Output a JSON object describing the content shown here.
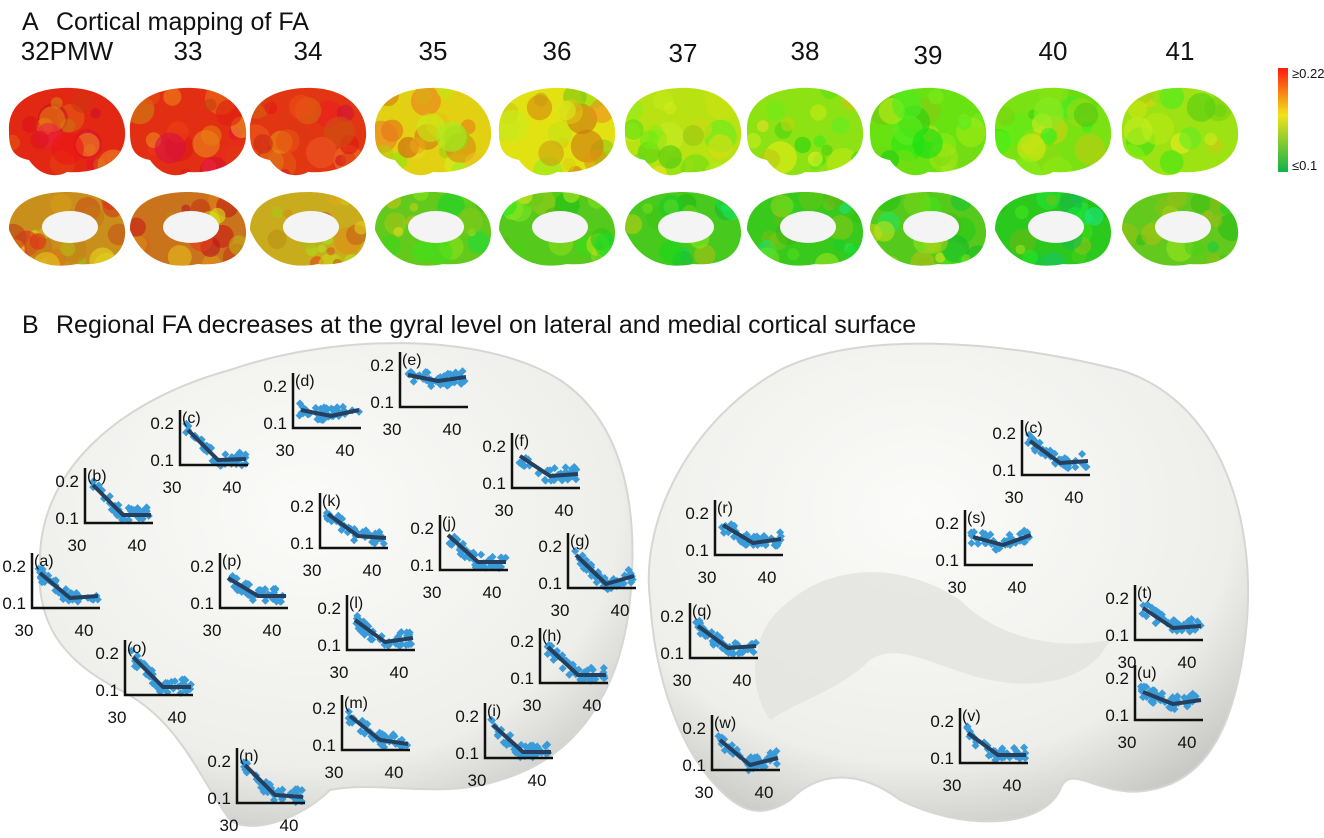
{
  "panel_a": {
    "label": "A",
    "title": "Cortical mapping of FA",
    "ages": [
      "32PMW",
      "33",
      "34",
      "35",
      "36",
      "37",
      "38",
      "39",
      "40",
      "41"
    ],
    "colorbar": {
      "max_label": "≥0.22",
      "min_label": "≤0.1"
    }
  },
  "panel_b": {
    "label": "B",
    "title": "Regional FA decreases at the gyral level on lateral and medial cortical surface",
    "plots": [
      {
        "label": "(a)",
        "yticks": [
          0.2,
          0.1
        ],
        "xticks": [
          30,
          40
        ]
      },
      {
        "label": "(b)",
        "yticks": [
          0.2,
          0.1
        ],
        "xticks": [
          30,
          40
        ]
      },
      {
        "label": "(c)",
        "yticks": [
          0.2,
          0.1
        ],
        "xticks": [
          30,
          40
        ]
      },
      {
        "label": "(d)",
        "yticks": [
          0.2,
          0.1
        ],
        "xticks": [
          30,
          40
        ]
      },
      {
        "label": "(e)",
        "yticks": [
          0.2,
          0.1
        ],
        "xticks": [
          30,
          40
        ]
      },
      {
        "label": "(f)",
        "yticks": [
          0.2,
          0.1
        ],
        "xticks": [
          30,
          40
        ]
      },
      {
        "label": "(g)",
        "yticks": [
          0.2,
          0.1
        ],
        "xticks": [
          30,
          40
        ]
      },
      {
        "label": "(h)",
        "yticks": [
          0.2,
          0.1
        ],
        "xticks": [
          30,
          40
        ]
      },
      {
        "label": "(i)",
        "yticks": [
          0.2,
          0.1
        ],
        "xticks": [
          30,
          40
        ]
      },
      {
        "label": "(j)",
        "yticks": [
          0.2,
          0.1
        ],
        "xticks": [
          30,
          40
        ]
      },
      {
        "label": "(k)",
        "yticks": [
          0.2,
          0.1
        ],
        "xticks": [
          30,
          40
        ]
      },
      {
        "label": "(l)",
        "yticks": [
          0.2,
          0.1
        ],
        "xticks": [
          30,
          40
        ]
      },
      {
        "label": "(m)",
        "yticks": [
          0.2,
          0.1
        ],
        "xticks": [
          30,
          40
        ]
      },
      {
        "label": "(n)",
        "yticks": [
          0.2,
          0.1
        ],
        "xticks": [
          30,
          40
        ]
      },
      {
        "label": "(o)",
        "yticks": [
          0.2,
          0.1
        ],
        "xticks": [
          30,
          40
        ]
      },
      {
        "label": "(p)",
        "yticks": [
          0.2,
          0.1
        ],
        "xticks": [
          30,
          40
        ]
      },
      {
        "label": "(c)",
        "yticks": [
          0.2,
          0.1
        ],
        "xticks": [
          30,
          40
        ]
      },
      {
        "label": "(r)",
        "yticks": [
          0.2,
          0.1
        ],
        "xticks": [
          30,
          40
        ]
      },
      {
        "label": "(s)",
        "yticks": [
          0.2,
          0.1
        ],
        "xticks": [
          30,
          40
        ]
      },
      {
        "label": "(t)",
        "yticks": [
          0.2,
          0.1
        ],
        "xticks": [
          30,
          40
        ]
      },
      {
        "label": "(q)",
        "yticks": [
          0.2,
          0.1
        ],
        "xticks": [
          30,
          40
        ]
      },
      {
        "label": "(u)",
        "yticks": [
          0.2,
          0.1
        ],
        "xticks": [
          30,
          40
        ]
      },
      {
        "label": "(w)",
        "yticks": [
          0.2,
          0.1
        ],
        "xticks": [
          30,
          40
        ]
      },
      {
        "label": "(v)",
        "yticks": [
          0.2,
          0.1
        ],
        "xticks": [
          30,
          40
        ]
      }
    ]
  }
}
